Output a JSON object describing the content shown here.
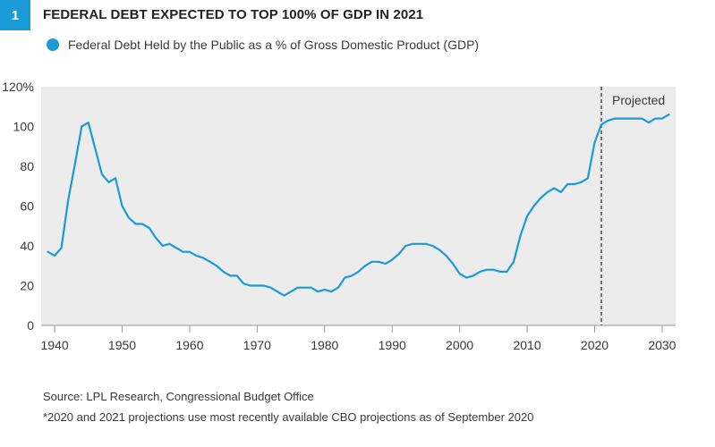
{
  "figure": {
    "number": "1",
    "title": "FEDERAL DEBT EXPECTED TO TOP 100% OF GDP IN 2021"
  },
  "legend": {
    "label": "Federal Debt Held by the Public as a % of Gross Domestic Product (GDP)",
    "color": "#1a9ad7"
  },
  "notes": {
    "source": "Source: LPL Research, Congressional Budget Office",
    "footnote": "*2020 and 2021 projections use most recently available CBO projections as of September 2020"
  },
  "chart_data": {
    "type": "line",
    "title": "FEDERAL DEBT EXPECTED TO TOP 100% OF GDP IN 2021",
    "xlabel": "",
    "ylabel": "",
    "xlim": [
      1938,
      2032
    ],
    "ylim": [
      0,
      120
    ],
    "x_ticks": [
      1940,
      1950,
      1960,
      1970,
      1980,
      1990,
      2000,
      2010,
      2020,
      2030
    ],
    "y_ticks": [
      0,
      20,
      40,
      60,
      80,
      100,
      120
    ],
    "y_tick_labels": [
      "0",
      "20",
      "40",
      "60",
      "80",
      "100",
      "120%"
    ],
    "grid": false,
    "background": "#ececec",
    "annotation": {
      "x": 2021,
      "label": "Projected",
      "style": "dashed-vertical-line"
    },
    "series": [
      {
        "name": "Federal Debt Held by the Public as a % of Gross Domestic Product (GDP)",
        "color": "#1a9ad7",
        "x": [
          1939,
          1940,
          1941,
          1942,
          1943,
          1944,
          1945,
          1946,
          1947,
          1948,
          1949,
          1950,
          1951,
          1952,
          1953,
          1954,
          1955,
          1956,
          1957,
          1958,
          1959,
          1960,
          1961,
          1962,
          1963,
          1964,
          1965,
          1966,
          1967,
          1968,
          1969,
          1970,
          1971,
          1972,
          1973,
          1974,
          1975,
          1976,
          1977,
          1978,
          1979,
          1980,
          1981,
          1982,
          1983,
          1984,
          1985,
          1986,
          1987,
          1988,
          1989,
          1990,
          1991,
          1992,
          1993,
          1994,
          1995,
          1996,
          1997,
          1998,
          1999,
          2000,
          2001,
          2002,
          2003,
          2004,
          2005,
          2006,
          2007,
          2008,
          2009,
          2010,
          2011,
          2012,
          2013,
          2014,
          2015,
          2016,
          2017,
          2018,
          2019,
          2020,
          2021,
          2022,
          2023,
          2024,
          2025,
          2026,
          2027,
          2028,
          2029,
          2030,
          2031
        ],
        "y": [
          37,
          35,
          39,
          63,
          81,
          100,
          102,
          89,
          76,
          72,
          74,
          60,
          54,
          51,
          51,
          49,
          44,
          40,
          41,
          39,
          37,
          37,
          35,
          34,
          32,
          30,
          27,
          25,
          25,
          21,
          20,
          20,
          20,
          19,
          17,
          15,
          17,
          19,
          19,
          19,
          17,
          18,
          17,
          19,
          24,
          25,
          27,
          30,
          32,
          32,
          31,
          33,
          36,
          40,
          41,
          41,
          41,
          40,
          38,
          35,
          31,
          26,
          24,
          25,
          27,
          28,
          28,
          27,
          27,
          32,
          45,
          55,
          60,
          64,
          67,
          69,
          67,
          71,
          71,
          72,
          74,
          92,
          101,
          103,
          104,
          104,
          104,
          104,
          104,
          102,
          104,
          104,
          106
        ]
      }
    ]
  }
}
